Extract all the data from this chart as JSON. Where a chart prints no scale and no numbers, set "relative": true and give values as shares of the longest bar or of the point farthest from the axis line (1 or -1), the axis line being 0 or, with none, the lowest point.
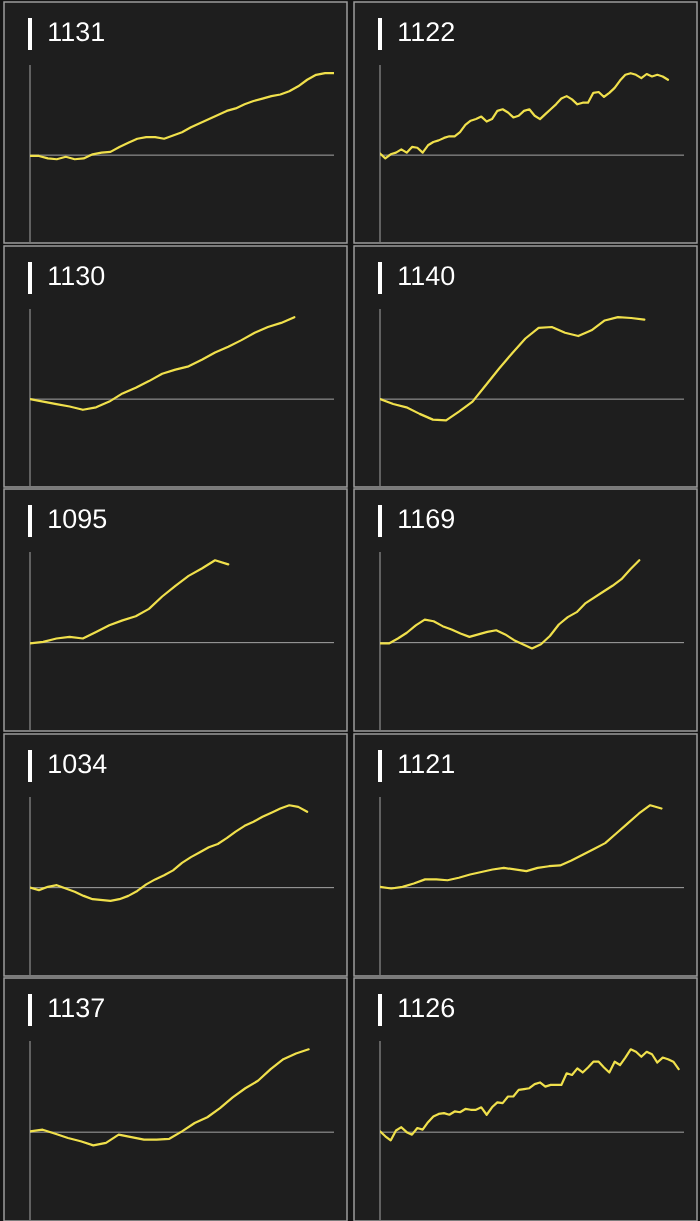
{
  "chart_data": [
    {
      "type": "line",
      "title": "1131",
      "relative": true,
      "color": "#f0e04c",
      "categories": [
        null,
        null,
        null,
        null,
        null,
        null,
        null,
        null,
        null,
        null,
        null,
        null,
        null,
        null,
        null,
        null,
        null,
        null,
        null,
        null,
        null,
        null,
        null,
        null,
        null,
        null,
        null,
        null,
        null,
        null,
        null,
        null,
        null,
        null,
        null
      ],
      "values": [
        -0.01,
        -0.01,
        -0.04,
        -0.05,
        -0.02,
        -0.05,
        -0.04,
        0.01,
        0.03,
        0.04,
        0.1,
        0.15,
        0.2,
        0.22,
        0.22,
        0.2,
        0.24,
        0.28,
        0.34,
        0.39,
        0.44,
        0.49,
        0.54,
        0.57,
        0.62,
        0.66,
        0.69,
        0.72,
        0.74,
        0.78,
        0.84,
        0.92,
        0.98,
        1,
        1
      ]
    },
    {
      "type": "line",
      "title": "1122",
      "relative": true,
      "color": "#f0e04c",
      "categories": [
        null,
        null,
        null,
        null,
        null,
        null,
        null,
        null,
        null,
        null,
        null,
        null,
        null,
        null,
        null,
        null,
        null,
        null,
        null,
        null,
        null,
        null,
        null,
        null,
        null,
        null,
        null,
        null,
        null,
        null,
        null,
        null,
        null,
        null,
        null,
        null,
        null,
        null,
        null,
        null,
        null,
        null,
        null,
        null,
        null,
        null,
        null,
        null,
        null,
        null,
        null,
        null,
        null,
        null,
        null,
        null,
        null,
        null
      ],
      "values": [
        0.02,
        -0.04,
        0.01,
        0.03,
        0.07,
        0.03,
        0.1,
        0.09,
        0.03,
        0.12,
        0.16,
        0.18,
        0.21,
        0.23,
        0.23,
        0.28,
        0.37,
        0.42,
        0.44,
        0.47,
        0.41,
        0.44,
        0.54,
        0.56,
        0.52,
        0.46,
        0.48,
        0.54,
        0.56,
        0.48,
        0.44,
        0.5,
        0.56,
        0.62,
        0.69,
        0.72,
        0.68,
        0.62,
        0.64,
        0.64,
        0.76,
        0.77,
        0.71,
        0.76,
        0.82,
        0.91,
        0.98,
        1,
        0.98,
        0.94,
        0.99,
        0.96,
        0.98,
        0.96,
        0.92,
        null,
        null,
        null
      ]
    },
    {
      "type": "line",
      "title": "1130",
      "relative": true,
      "color": "#f0e04c",
      "categories": [
        null,
        null,
        null,
        null,
        null,
        null,
        null,
        null,
        null,
        null,
        null,
        null,
        null,
        null,
        null,
        null,
        null,
        null,
        null,
        null,
        null,
        null,
        null,
        null
      ],
      "values": [
        0,
        -0.03,
        -0.06,
        -0.09,
        -0.13,
        -0.1,
        -0.03,
        0.07,
        0.14,
        0.22,
        0.31,
        0.36,
        0.4,
        0.48,
        0.57,
        0.64,
        0.72,
        0.81,
        0.88,
        0.93,
        1,
        null,
        null,
        null
      ]
    },
    {
      "type": "line",
      "title": "1140",
      "relative": true,
      "color": "#f0e04c",
      "categories": [
        null,
        null,
        null,
        null,
        null,
        null,
        null,
        null,
        null,
        null,
        null,
        null,
        null,
        null,
        null,
        null,
        null,
        null,
        null,
        null,
        null,
        null,
        null,
        null
      ],
      "values": [
        0,
        -0.06,
        -0.1,
        -0.18,
        -0.25,
        -0.26,
        -0.15,
        -0.03,
        0.17,
        0.37,
        0.56,
        0.74,
        0.87,
        0.88,
        0.81,
        0.77,
        0.84,
        0.96,
        1,
        0.99,
        0.97,
        null,
        null,
        null
      ]
    },
    {
      "type": "line",
      "title": "1095",
      "relative": true,
      "color": "#f0e04c",
      "categories": [
        null,
        null,
        null,
        null,
        null,
        null,
        null,
        null,
        null,
        null,
        null,
        null,
        null,
        null,
        null,
        null,
        null,
        null,
        null,
        null,
        null,
        null,
        null,
        null
      ],
      "values": [
        -0.01,
        0.01,
        0.05,
        0.07,
        0.05,
        0.13,
        0.21,
        0.27,
        0.32,
        0.41,
        0.56,
        0.69,
        0.81,
        0.9,
        1,
        0.95,
        null,
        null,
        null,
        null,
        null,
        null,
        null,
        null
      ]
    },
    {
      "type": "line",
      "title": "1169",
      "relative": true,
      "color": "#f0e04c",
      "categories": [
        null,
        null,
        null,
        null,
        null,
        null,
        null,
        null,
        null,
        null,
        null,
        null,
        null,
        null,
        null,
        null,
        null,
        null,
        null,
        null,
        null,
        null,
        null,
        null,
        null,
        null,
        null,
        null,
        null,
        null,
        null,
        null,
        null,
        null,
        null
      ],
      "values": [
        -0.01,
        -0.01,
        0.05,
        0.12,
        0.21,
        0.28,
        0.26,
        0.2,
        0.16,
        0.11,
        0.07,
        0.1,
        0.13,
        0.15,
        0.1,
        0.03,
        -0.02,
        -0.07,
        -0.02,
        0.08,
        0.22,
        0.31,
        0.37,
        0.48,
        0.55,
        0.62,
        0.69,
        0.77,
        0.89,
        1,
        null,
        null,
        null,
        null,
        null
      ]
    },
    {
      "type": "line",
      "title": "1034",
      "relative": true,
      "color": "#f0e04c",
      "categories": [
        null,
        null,
        null,
        null,
        null,
        null,
        null,
        null,
        null,
        null,
        null,
        null,
        null,
        null,
        null,
        null,
        null,
        null,
        null,
        null,
        null,
        null,
        null,
        null,
        null,
        null,
        null,
        null,
        null,
        null,
        null,
        null,
        null,
        null,
        null
      ],
      "values": [
        0,
        -0.03,
        0.01,
        0.03,
        -0.01,
        -0.05,
        -0.1,
        -0.14,
        -0.15,
        -0.16,
        -0.14,
        -0.1,
        -0.04,
        0.04,
        0.1,
        0.15,
        0.21,
        0.3,
        0.37,
        0.43,
        0.49,
        0.53,
        0.6,
        0.68,
        0.75,
        0.8,
        0.86,
        0.91,
        0.96,
        1,
        0.98,
        0.92,
        null,
        null,
        null
      ]
    },
    {
      "type": "line",
      "title": "1121",
      "relative": true,
      "color": "#f0e04c",
      "categories": [
        null,
        null,
        null,
        null,
        null,
        null,
        null,
        null,
        null,
        null,
        null,
        null,
        null,
        null,
        null,
        null,
        null,
        null,
        null,
        null,
        null,
        null,
        null,
        null,
        null,
        null,
        null,
        null
      ],
      "values": [
        0.01,
        -0.01,
        0.01,
        0.05,
        0.1,
        0.1,
        0.09,
        0.12,
        0.16,
        0.19,
        0.22,
        0.24,
        0.22,
        0.2,
        0.24,
        0.26,
        0.27,
        0.33,
        0.4,
        0.47,
        0.54,
        0.66,
        0.78,
        0.9,
        1,
        0.96,
        null,
        null
      ]
    },
    {
      "type": "line",
      "title": "1137",
      "relative": true,
      "color": "#f0e04c",
      "categories": [
        null,
        null,
        null,
        null,
        null,
        null,
        null,
        null,
        null,
        null,
        null,
        null,
        null,
        null,
        null,
        null,
        null,
        null,
        null,
        null,
        null,
        null,
        null,
        null,
        null
      ],
      "values": [
        0.01,
        0.03,
        -0.02,
        -0.07,
        -0.11,
        -0.16,
        -0.13,
        -0.03,
        -0.06,
        -0.09,
        -0.09,
        -0.08,
        0.01,
        0.11,
        0.18,
        0.29,
        0.42,
        0.53,
        0.62,
        0.76,
        0.88,
        0.95,
        1,
        null,
        null
      ]
    },
    {
      "type": "line",
      "title": "1126",
      "relative": true,
      "color": "#f0e04c",
      "categories": [
        null,
        null,
        null,
        null,
        null,
        null,
        null,
        null,
        null,
        null,
        null,
        null,
        null,
        null,
        null,
        null,
        null,
        null,
        null,
        null,
        null,
        null,
        null,
        null,
        null,
        null,
        null,
        null,
        null,
        null,
        null,
        null,
        null,
        null,
        null,
        null,
        null,
        null,
        null,
        null,
        null,
        null,
        null,
        null,
        null,
        null,
        null,
        null,
        null,
        null,
        null,
        null,
        null,
        null,
        null,
        null,
        null,
        null
      ],
      "values": [
        0.01,
        -0.05,
        -0.1,
        0.02,
        0.06,
        0,
        -0.03,
        0.05,
        0.03,
        0.12,
        0.19,
        0.22,
        0.23,
        0.21,
        0.25,
        0.24,
        0.28,
        0.27,
        0.27,
        0.3,
        0.21,
        0.3,
        0.36,
        0.35,
        0.43,
        0.43,
        0.51,
        0.52,
        0.53,
        0.58,
        0.6,
        0.55,
        0.57,
        0.57,
        0.57,
        0.71,
        0.69,
        0.77,
        0.72,
        0.78,
        0.85,
        0.85,
        0.78,
        0.72,
        0.85,
        0.81,
        0.9,
        1,
        0.97,
        0.91,
        0.97,
        0.94,
        0.84,
        0.9,
        0.88,
        0.85,
        0.76,
        null
      ]
    }
  ]
}
